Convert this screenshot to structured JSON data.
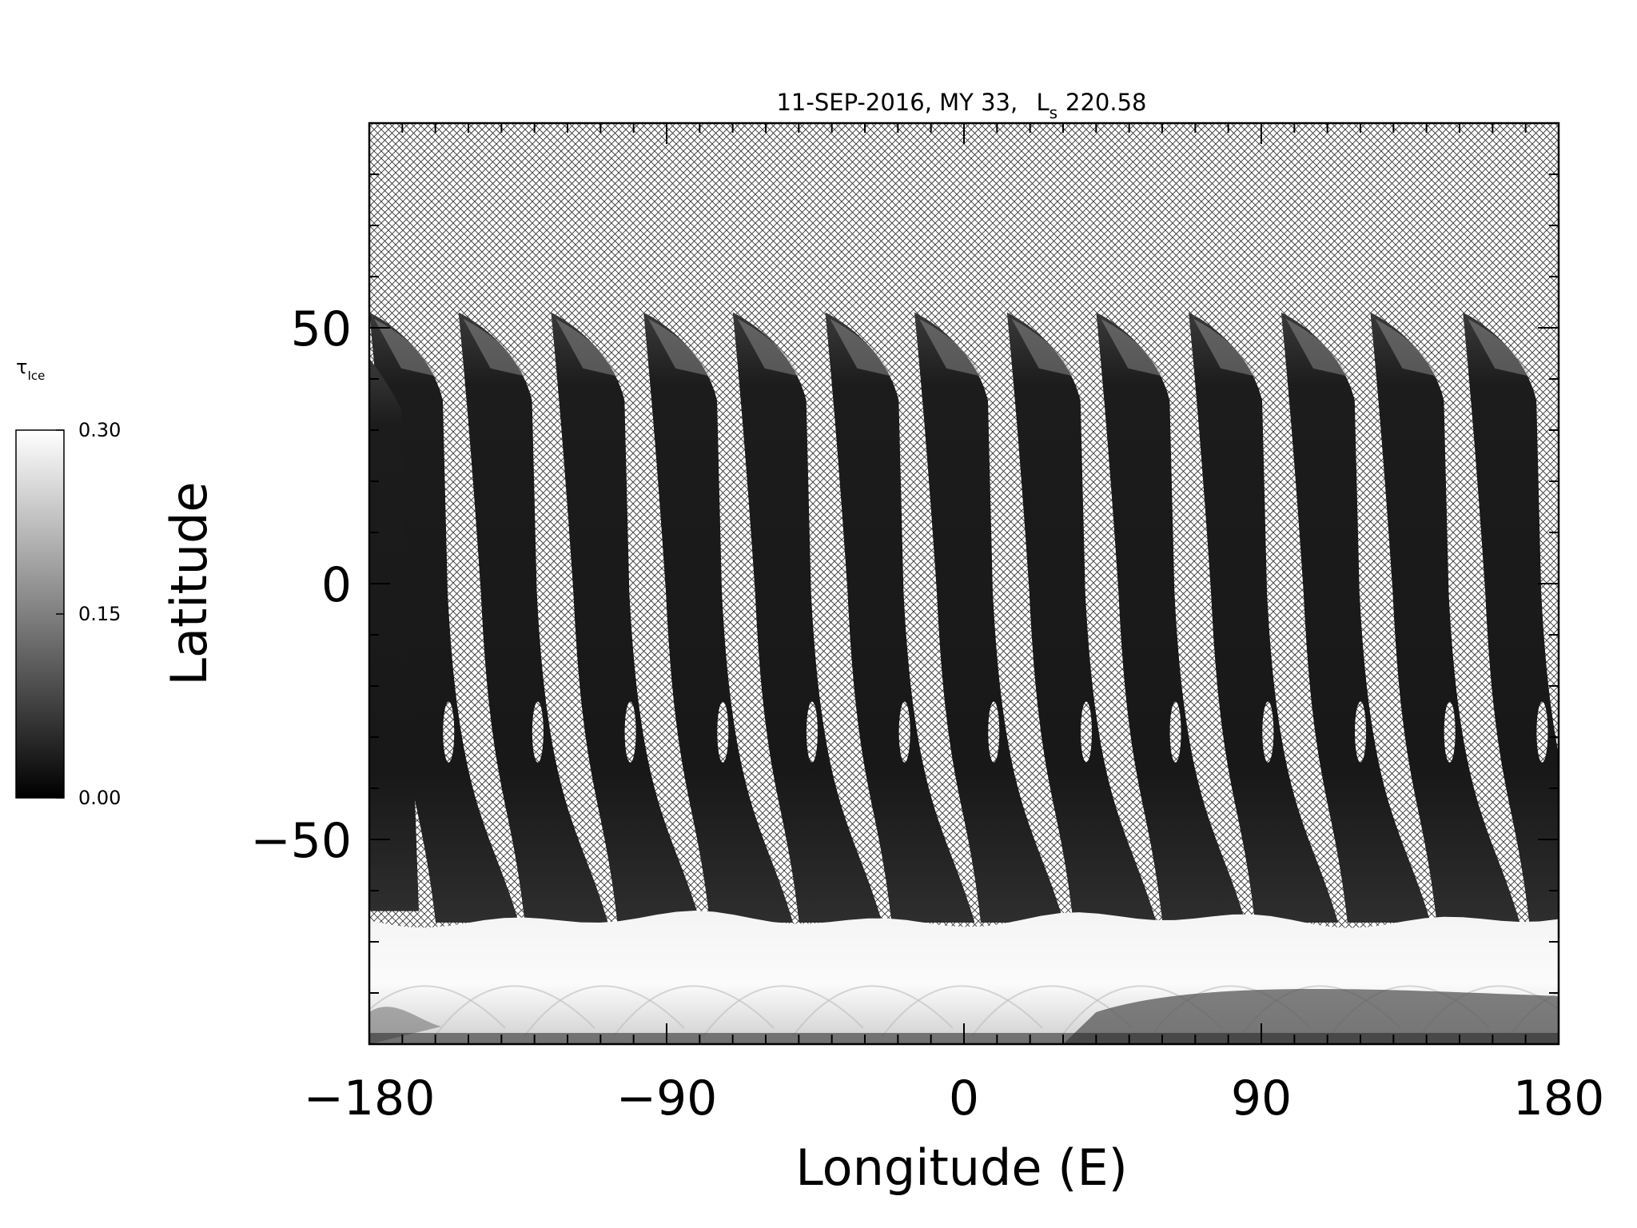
{
  "chart_data": {
    "type": "heatmap",
    "title_parts": {
      "date": "11-SEP-2016, MY 33,",
      "ls_main": "L",
      "ls_sub": "s",
      "ls_value": "220.58"
    },
    "xlabel": "Longitude (E)",
    "ylabel": "Latitude",
    "xlim": [
      -180,
      180
    ],
    "ylim": [
      -90,
      90
    ],
    "x_ticks": [
      -180,
      -90,
      0,
      90,
      180
    ],
    "x_tick_labels": [
      "−180",
      "−90",
      "0",
      "90",
      "180"
    ],
    "y_ticks": [
      -50,
      0,
      50
    ],
    "y_tick_labels": [
      "−50",
      "0",
      "50"
    ],
    "missing_data_fill": "crosshatch",
    "colorbar": {
      "label_main": "τ",
      "label_sub": "Ice",
      "range": [
        0.0,
        0.3
      ],
      "tick_values": [
        0.0,
        0.15,
        0.3
      ],
      "tick_labels": [
        "0.00",
        "0.15",
        "0.30"
      ],
      "colormap": "grayscale",
      "low_color": "#000000",
      "high_color": "#ffffff"
    },
    "orbit_swaths": {
      "count": 13,
      "start_longitudes": [
        -180,
        -153,
        -125,
        -97,
        -70,
        -42,
        -15,
        13,
        40,
        68,
        96,
        123,
        151
      ],
      "top_latitude": 53,
      "bottom_latitude": -65,
      "polar_cap_edge_latitude": -65
    }
  }
}
